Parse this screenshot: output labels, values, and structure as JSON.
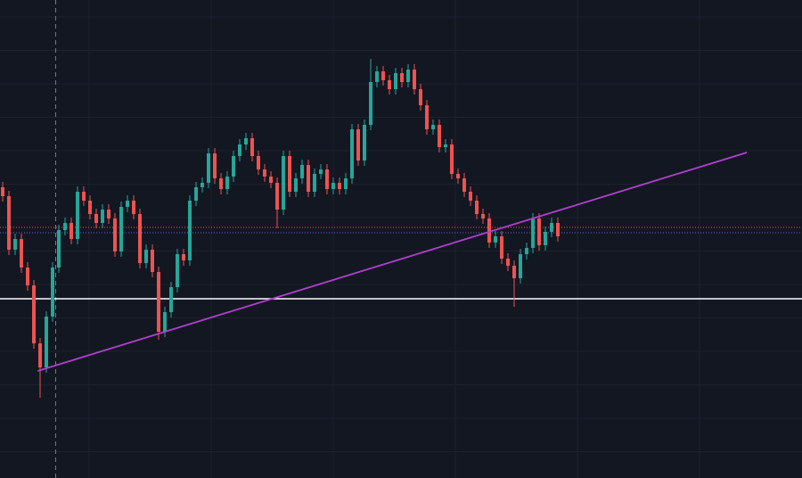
{
  "chart_data": {
    "type": "candlestick",
    "up_color": "#26a69a",
    "down_color": "#ef5350",
    "ylim": [
      0,
      53.6
    ],
    "open": [
      32.6,
      31.6,
      25.6,
      26.8,
      23.6,
      21.6,
      15.1,
      12.4,
      18.1,
      23.6,
      27.8,
      28.6,
      26.8,
      32.1,
      31.1,
      29.6,
      28.6,
      30.1,
      29.1,
      25.4,
      30.4,
      31.1,
      29.6,
      24.1,
      25.6,
      23.1,
      16.4,
      18.6,
      21.4,
      25.1,
      24.4,
      31.1,
      32.6,
      33.1,
      36.4,
      33.6,
      32.4,
      33.8,
      36.1,
      37.4,
      38.1,
      36.1,
      34.6,
      33.8,
      33.1,
      30.1,
      36.1,
      32.1,
      33.6,
      35.1,
      32.1,
      34.1,
      34.6,
      32.4,
      33.1,
      32.4,
      33.6,
      39.1,
      35.6,
      39.6,
      44.4,
      45.6,
      44.6,
      43.6,
      45.4,
      44.4,
      45.8,
      43.6,
      41.8,
      39.1,
      39.6,
      37.1,
      37.4,
      34.1,
      33.6,
      32.1,
      31.1,
      29.6,
      29.1,
      26.4,
      27.1,
      24.6,
      23.8,
      22.4,
      25.1,
      25.8,
      29.1,
      26.1,
      27.6,
      28.6
    ],
    "high": [
      33.2,
      32.2,
      27.4,
      27.4,
      24.2,
      22.2,
      15.7,
      18.7,
      24.2,
      28.4,
      29.2,
      29.2,
      32.7,
      32.7,
      31.7,
      30.2,
      30.7,
      30.7,
      29.7,
      31.0,
      31.7,
      31.7,
      30.2,
      26.2,
      26.2,
      23.7,
      19.2,
      22.0,
      25.7,
      25.7,
      31.7,
      33.2,
      33.7,
      37.0,
      37.0,
      34.2,
      34.4,
      36.7,
      38.0,
      38.7,
      38.7,
      36.7,
      35.2,
      34.4,
      33.7,
      36.7,
      36.7,
      34.2,
      35.7,
      35.7,
      34.7,
      35.2,
      35.2,
      33.7,
      33.7,
      34.2,
      39.7,
      39.7,
      40.2,
      47.0,
      46.2,
      46.2,
      45.2,
      46.0,
      46.0,
      46.4,
      46.4,
      44.2,
      42.4,
      40.2,
      40.2,
      38.0,
      38.0,
      34.7,
      34.2,
      32.7,
      31.7,
      30.2,
      29.7,
      27.7,
      27.7,
      25.2,
      24.4,
      25.7,
      26.4,
      29.7,
      29.7,
      28.2,
      29.2,
      29.2
    ],
    "low": [
      31.0,
      25.0,
      25.0,
      23.0,
      21.0,
      14.5,
      9.0,
      11.8,
      17.5,
      23.0,
      27.2,
      26.2,
      26.2,
      30.5,
      29.0,
      28.0,
      28.0,
      28.5,
      24.8,
      24.8,
      29.8,
      29.0,
      23.5,
      23.5,
      22.5,
      15.5,
      15.8,
      18.0,
      20.8,
      23.8,
      23.8,
      30.5,
      32.0,
      32.5,
      33.0,
      31.8,
      31.8,
      33.2,
      35.5,
      36.8,
      35.5,
      34.0,
      33.2,
      32.5,
      28.0,
      29.5,
      31.5,
      31.5,
      33.0,
      31.5,
      31.5,
      33.5,
      31.8,
      31.8,
      31.8,
      31.8,
      33.0,
      35.0,
      35.0,
      39.0,
      43.8,
      44.0,
      43.0,
      43.0,
      43.8,
      43.8,
      43.0,
      41.2,
      38.5,
      38.5,
      36.5,
      36.5,
      33.5,
      33.0,
      31.5,
      30.5,
      29.0,
      28.5,
      25.8,
      25.8,
      24.0,
      23.2,
      19.2,
      21.8,
      24.5,
      25.2,
      25.5,
      25.5,
      27.0,
      26.5
    ],
    "close": [
      31.6,
      25.6,
      26.8,
      23.6,
      21.6,
      15.1,
      12.4,
      18.1,
      23.6,
      27.8,
      28.6,
      26.8,
      32.1,
      31.1,
      29.6,
      28.6,
      30.1,
      29.1,
      25.4,
      30.4,
      31.1,
      29.6,
      24.1,
      25.6,
      23.1,
      16.4,
      18.6,
      21.4,
      25.1,
      24.4,
      31.1,
      32.6,
      33.1,
      36.4,
      33.6,
      32.4,
      33.8,
      36.1,
      37.4,
      38.1,
      36.1,
      34.6,
      33.8,
      33.1,
      30.1,
      36.1,
      32.1,
      33.6,
      35.1,
      32.1,
      34.1,
      34.6,
      32.4,
      33.1,
      32.4,
      33.6,
      39.1,
      35.6,
      39.6,
      44.4,
      45.6,
      44.6,
      43.6,
      45.4,
      44.4,
      45.8,
      43.6,
      41.8,
      39.1,
      39.6,
      37.1,
      37.4,
      34.1,
      33.6,
      32.1,
      31.1,
      29.6,
      29.1,
      26.4,
      27.1,
      24.6,
      23.8,
      22.4,
      25.1,
      25.8,
      29.1,
      26.1,
      27.6,
      28.6,
      27.1
    ],
    "horizontal_lines": [
      {
        "value": 20.1,
        "color": "#ffffff",
        "style": "solid"
      },
      {
        "value": 28.1,
        "color": "#ef5350",
        "style": "dotted"
      },
      {
        "value": 27.5,
        "color": "#5b6bd6",
        "style": "dotted"
      }
    ],
    "trendline": {
      "x": [
        5.6,
        119.3
      ],
      "values": [
        12.0,
        36.5
      ],
      "color": "#b23fd0"
    }
  }
}
